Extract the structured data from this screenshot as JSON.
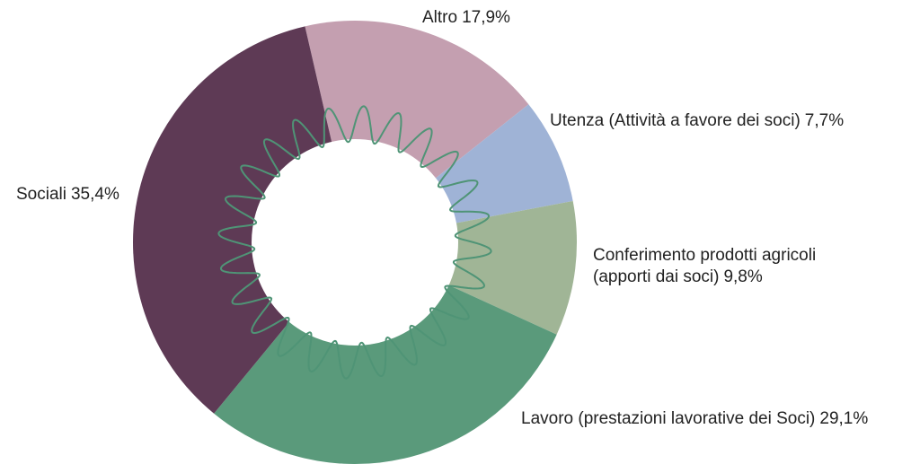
{
  "chart_data": {
    "type": "donut",
    "categories": [
      "Altro",
      "Utenza (Attività a favore dei soci)",
      "Conferimento prodotti agricoli (apporti dai soci)",
      "Lavoro (prestazioni lavorative dei Soci)",
      "Sociali"
    ],
    "values": [
      17.9,
      7.7,
      9.8,
      29.1,
      35.4
    ],
    "value_labels": [
      "17,9%",
      "7,7%",
      "9,8%",
      "29,1%",
      "35,4%"
    ],
    "colors": [
      "#c49fb0",
      "#9fb3d6",
      "#a0b596",
      "#5a9a7b",
      "#5e3a55"
    ]
  }
}
